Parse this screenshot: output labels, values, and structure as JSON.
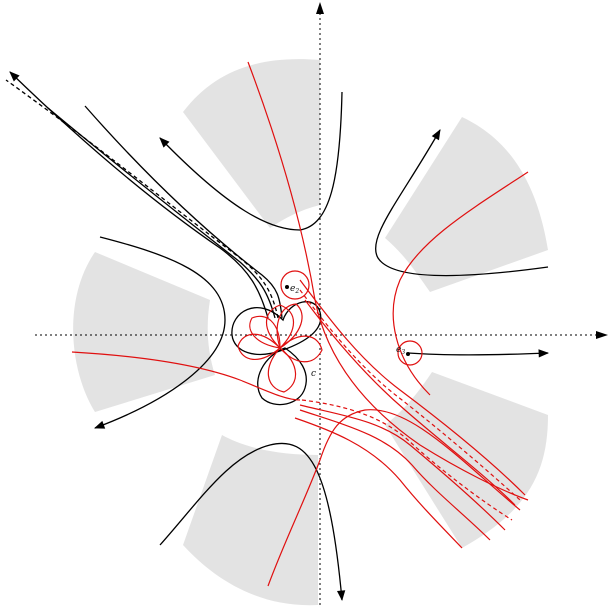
{
  "figure": {
    "labels": {
      "e2": {
        "base": "e",
        "sub": "2"
      },
      "e3": {
        "base": "e",
        "sub": "3"
      },
      "c": {
        "text": "c"
      }
    },
    "colors": {
      "black_curves": "#000000",
      "red_curves": "#e01010",
      "sectors": "#e3e3e3",
      "axes": "#000000"
    },
    "line_styles": {
      "axes": "dotted",
      "curves": [
        "solid",
        "dashed"
      ]
    }
  }
}
